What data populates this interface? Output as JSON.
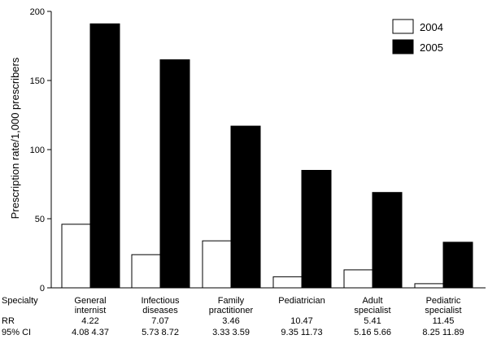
{
  "chart_data": {
    "type": "bar",
    "ylabel": "Prescription rate/1,000 prescribers",
    "ylim": [
      0,
      200
    ],
    "yticks": [
      0,
      50,
      100,
      150,
      200
    ],
    "grid": false,
    "legend_position": "top-right",
    "categories": [
      [
        "General",
        "internist"
      ],
      [
        "Infectious",
        "diseases"
      ],
      [
        "Family",
        "practitioner"
      ],
      [
        "Pediatrician"
      ],
      [
        "Adult",
        "specialist"
      ],
      [
        "Pediatric",
        "specialist"
      ]
    ],
    "series": [
      {
        "name": "2004",
        "fill": "#ffffff",
        "values": [
          46,
          24,
          34,
          8,
          13,
          3
        ]
      },
      {
        "name": "2005",
        "fill": "#000000",
        "values": [
          191,
          165,
          117,
          85,
          69,
          33
        ]
      }
    ],
    "table": {
      "row_labels": [
        "Specialty",
        "RR",
        "95% CI"
      ],
      "rr": [
        "4.22",
        "7.07",
        "3.46",
        "10.47",
        "5.41",
        "11.45"
      ],
      "ci": [
        "4.08  4.37",
        "5.73  8.72",
        "3.33  3.59",
        "9.35  11.73",
        "5.16  5.66",
        "8.25  11.89"
      ]
    }
  }
}
